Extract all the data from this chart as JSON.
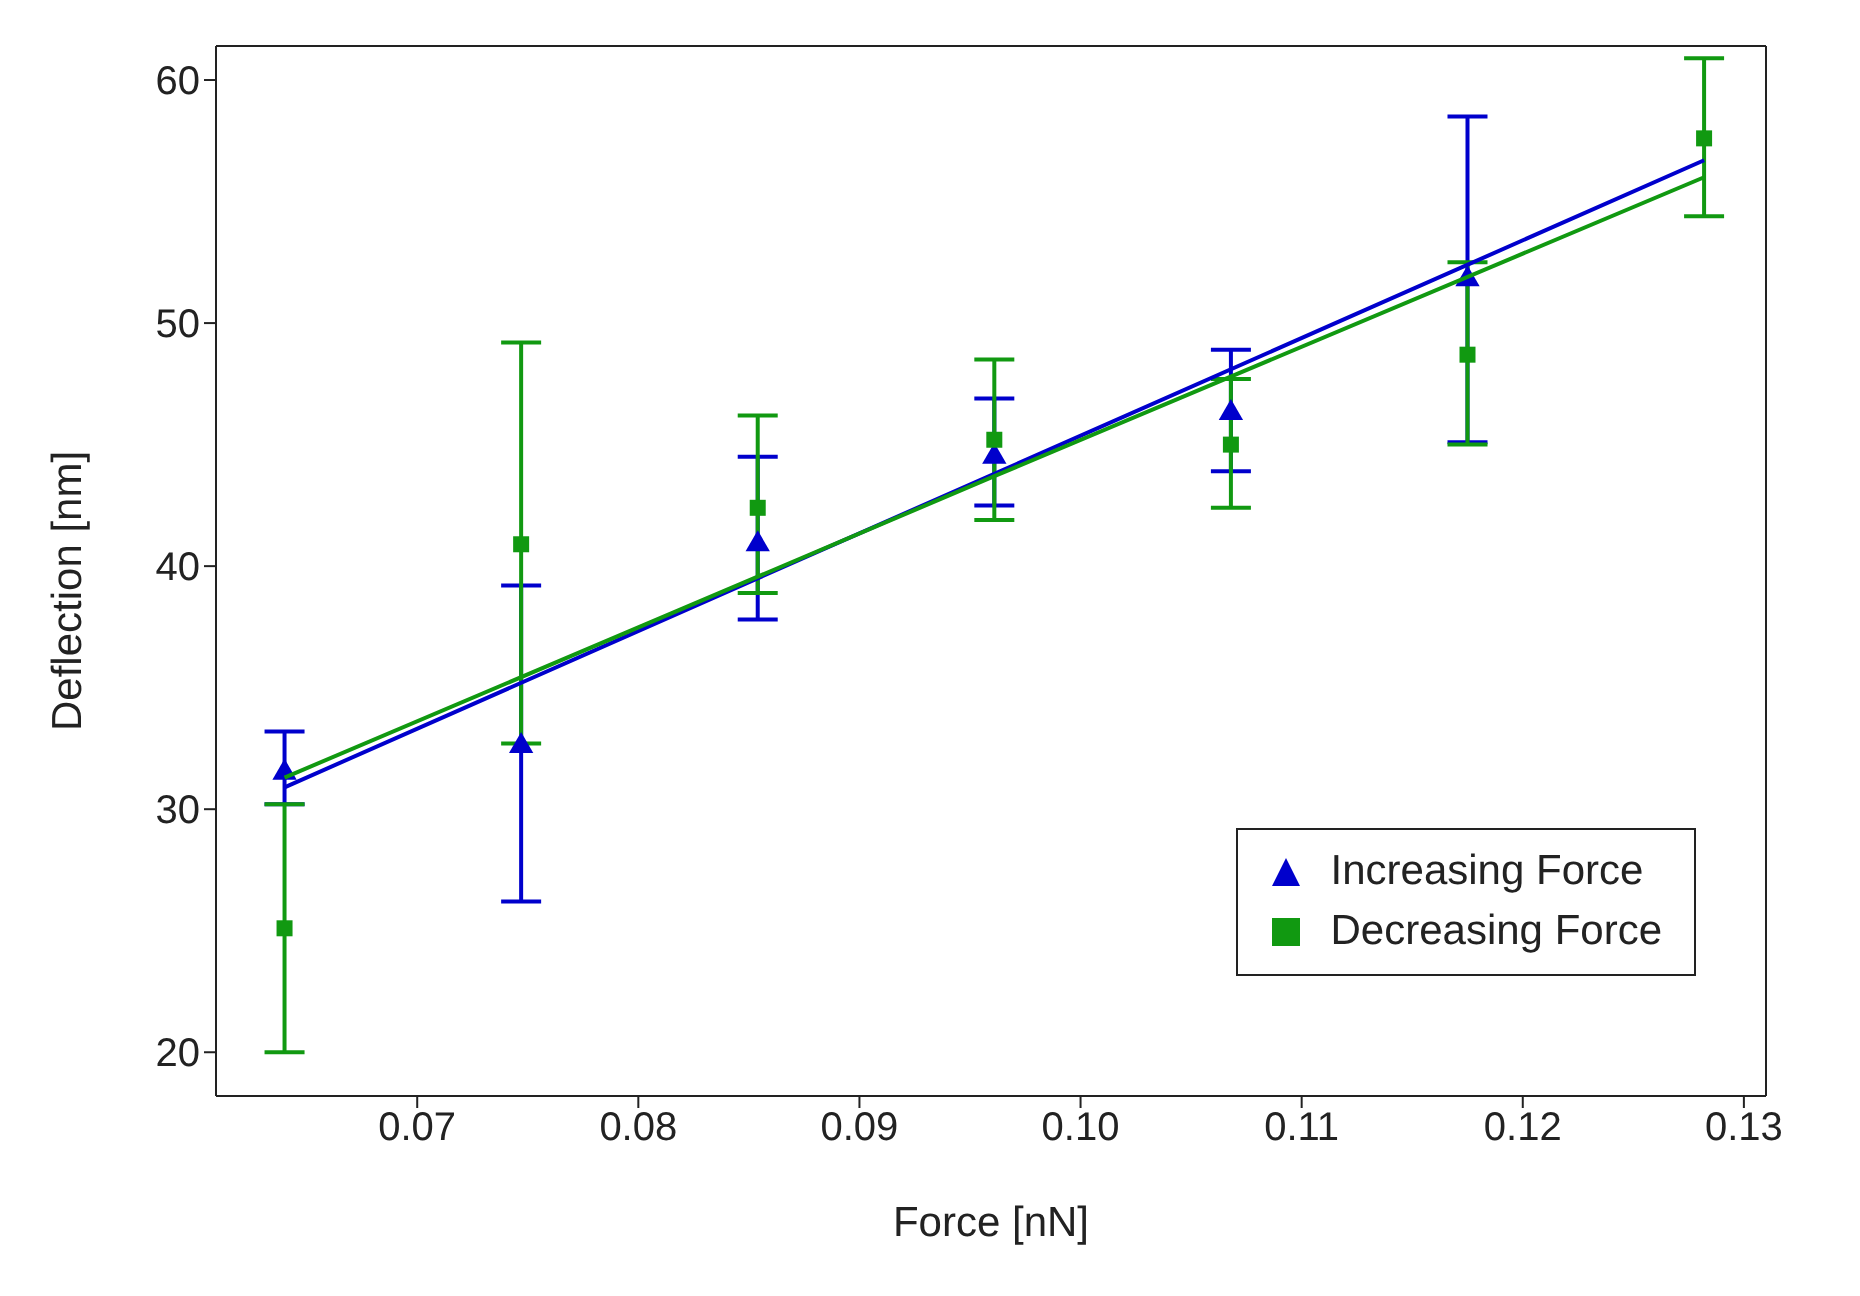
{
  "chart_data": {
    "type": "scatter",
    "xlabel": "Force [nN]",
    "ylabel": "Deflection [nm]",
    "xlim": [
      0.0609,
      0.131
    ],
    "xticks": [
      {
        "value": 0.07,
        "label": "0.07"
      },
      {
        "value": 0.08,
        "label": "0.08"
      },
      {
        "value": 0.09,
        "label": "0.09"
      },
      {
        "value": 0.1,
        "label": "0.10"
      },
      {
        "value": 0.11,
        "label": "0.11"
      },
      {
        "value": 0.12,
        "label": "0.12"
      },
      {
        "value": 0.13,
        "label": "0.13"
      }
    ],
    "ylim": [
      18.2,
      61.4
    ],
    "yticks": [
      20,
      30,
      40,
      50,
      60
    ],
    "x": [
      0.064,
      0.0747,
      0.0854,
      0.0961,
      0.1068,
      0.1175,
      0.1282
    ],
    "series": [
      {
        "name": "Increasing Force",
        "color": "#0000cc",
        "marker": "triangle",
        "values": [
          31.5,
          32.6,
          40.9,
          44.5,
          46.3,
          51.8,
          null
        ],
        "errors": [
          [
            30.2,
            33.2
          ],
          [
            26.2,
            39.2
          ],
          [
            37.8,
            44.5
          ],
          [
            42.5,
            46.9
          ],
          [
            43.9,
            48.9
          ],
          [
            45.1,
            58.5
          ],
          null
        ]
      },
      {
        "name": "Decreasing Force",
        "color": "#119911",
        "marker": "square",
        "values": [
          25.1,
          40.9,
          42.4,
          45.2,
          45.0,
          48.7,
          57.6
        ],
        "errors": [
          [
            20.0,
            30.2
          ],
          [
            32.7,
            49.2
          ],
          [
            38.9,
            46.2
          ],
          [
            41.9,
            48.5
          ],
          [
            42.4,
            47.7
          ],
          [
            45.0,
            52.5
          ],
          [
            54.4,
            60.9
          ]
        ]
      },
      {
        "type": "line",
        "color": "#0000cc",
        "x": [
          0.064,
          0.0961,
          0.1282
        ],
        "values": [
          30.9,
          43.8,
          56.7
        ]
      },
      {
        "type": "line",
        "color": "#119911",
        "x": [
          0.064,
          0.0961,
          0.1282
        ],
        "values": [
          31.3,
          43.7,
          56.0
        ]
      }
    ],
    "legend": "bottom right",
    "grid": false
  }
}
